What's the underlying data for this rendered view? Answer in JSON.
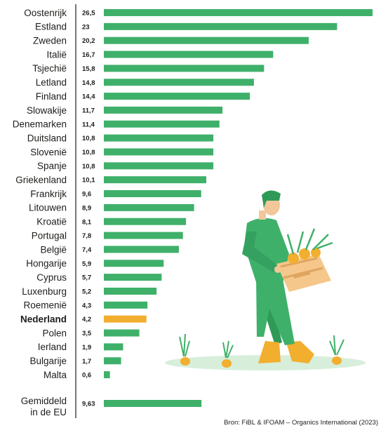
{
  "chart_data": {
    "type": "bar",
    "orientation": "horizontal",
    "categories": [
      "Oostenrijk",
      "Estland",
      "Zweden",
      "Italië",
      "Tsjechië",
      "Letland",
      "Finland",
      "Slowakije",
      "Denemarken",
      "Duitsland",
      "Slovenië",
      "Spanje",
      "Griekenland",
      "Frankrijk",
      "Litouwen",
      "Kroatië",
      "Portugal",
      "België",
      "Hongarije",
      "Cyprus",
      "Luxenburg",
      "Roemenië",
      "Nederland",
      "Polen",
      "Ierland",
      "Bulgarije",
      "Malta"
    ],
    "values": [
      26.5,
      23,
      20.2,
      16.7,
      15.8,
      14.8,
      14.4,
      11.7,
      11.4,
      10.8,
      10.8,
      10.8,
      10.1,
      9.6,
      8.9,
      8.1,
      7.8,
      7.4,
      5.9,
      5.7,
      5.2,
      4.3,
      4.2,
      3.5,
      1.9,
      1.7,
      0.6
    ],
    "value_labels": [
      "26,5",
      "23",
      "20,2",
      "16,7",
      "15,8",
      "14,8",
      "14,4",
      "11,7",
      "11,4",
      "10,8",
      "10,8",
      "10,8",
      "10,1",
      "9,6",
      "8,9",
      "8,1",
      "7,8",
      "7,4",
      "5,9",
      "5,7",
      "5,2",
      "4,3",
      "4,2",
      "3,5",
      "1,9",
      "1,7",
      "0,6"
    ],
    "highlight": "Nederland",
    "average": {
      "label_line1": "Gemiddeld",
      "label_line2": "in de EU",
      "value": 9.63,
      "value_label": "9,63"
    },
    "xlim": [
      0,
      26.5
    ],
    "colors": {
      "bar": "#3fb06a",
      "highlight": "#f2ae2e",
      "axis": "#1d1d1b"
    },
    "grid": false,
    "legend": "none"
  },
  "source": "Bron: FiBL & IFOAM – Organics International (2023)",
  "illustration": "farmer-carrying-vegetable-crate-icon"
}
